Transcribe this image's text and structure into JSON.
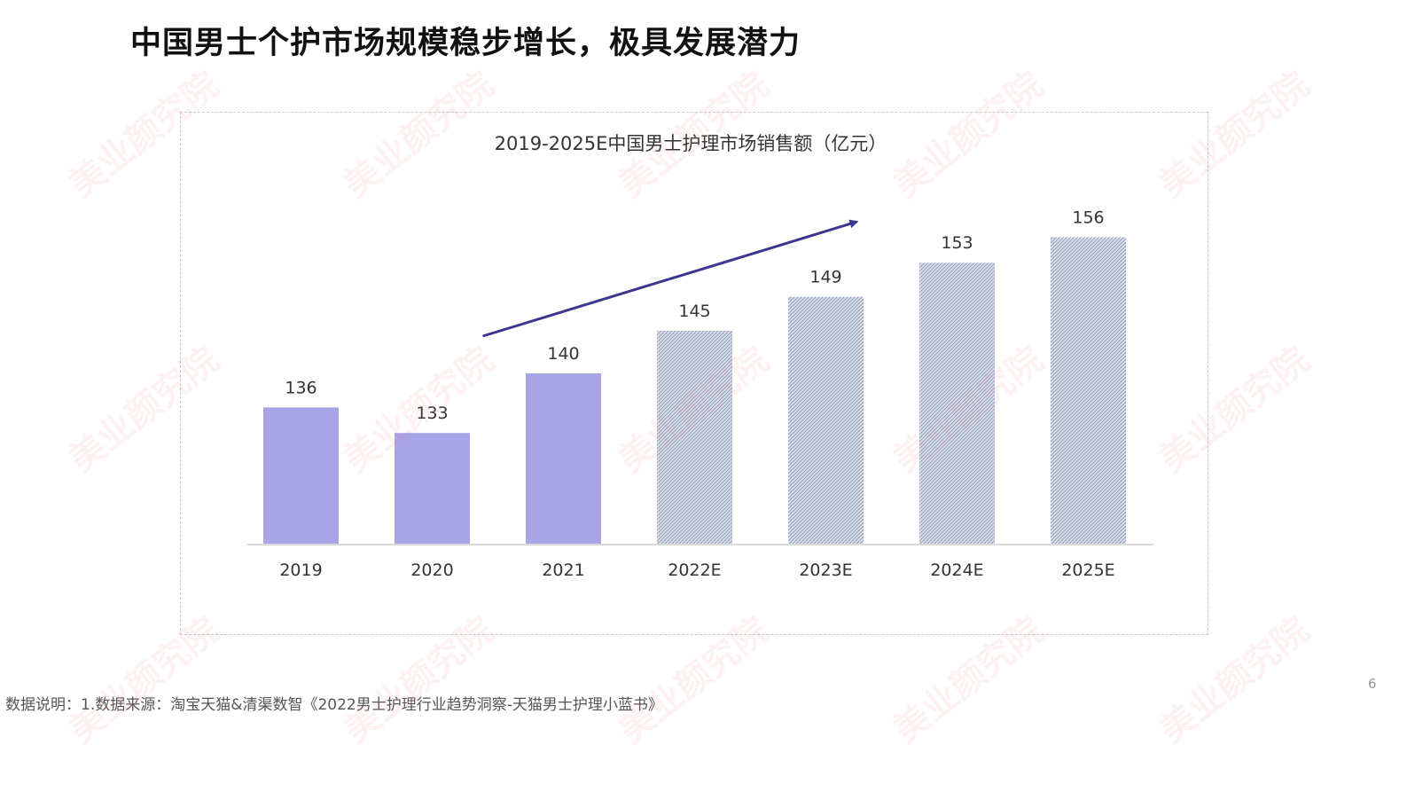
{
  "page": {
    "title": "中国男士个护市场规模稳步增长，极具发展潜力",
    "footnote": "数据说明：1.数据来源：淘宝天猫&清渠数智《2022男士护理行业趋势洞察-天猫男士护理小蓝书》",
    "page_number": "6",
    "watermark_text": "美业颜究院"
  },
  "chart_data": {
    "type": "bar",
    "title": "2019-2025E中国男士护理市场销售额（亿元）",
    "xlabel": "",
    "ylabel": "",
    "categories": [
      "2019",
      "2020",
      "2021",
      "2022E",
      "2023E",
      "2024E",
      "2025E"
    ],
    "values": [
      136,
      133,
      140,
      145,
      149,
      153,
      156
    ],
    "estimated": [
      false,
      false,
      false,
      true,
      true,
      true,
      true
    ],
    "ylim": [
      120,
      160
    ],
    "grid": false,
    "legend": "none",
    "colors": {
      "actual": "#a9a4e6",
      "estimate_base": "#dde3ee",
      "estimate_stripe": "#8f9cb8",
      "trend_arrow": "#3b3790",
      "axis": "#d9d9d9",
      "label": "#333333"
    },
    "annotations": [
      {
        "type": "trend-arrow",
        "from_category": "2020",
        "to_category": "2023E",
        "meaning": "increasing trend"
      }
    ]
  }
}
